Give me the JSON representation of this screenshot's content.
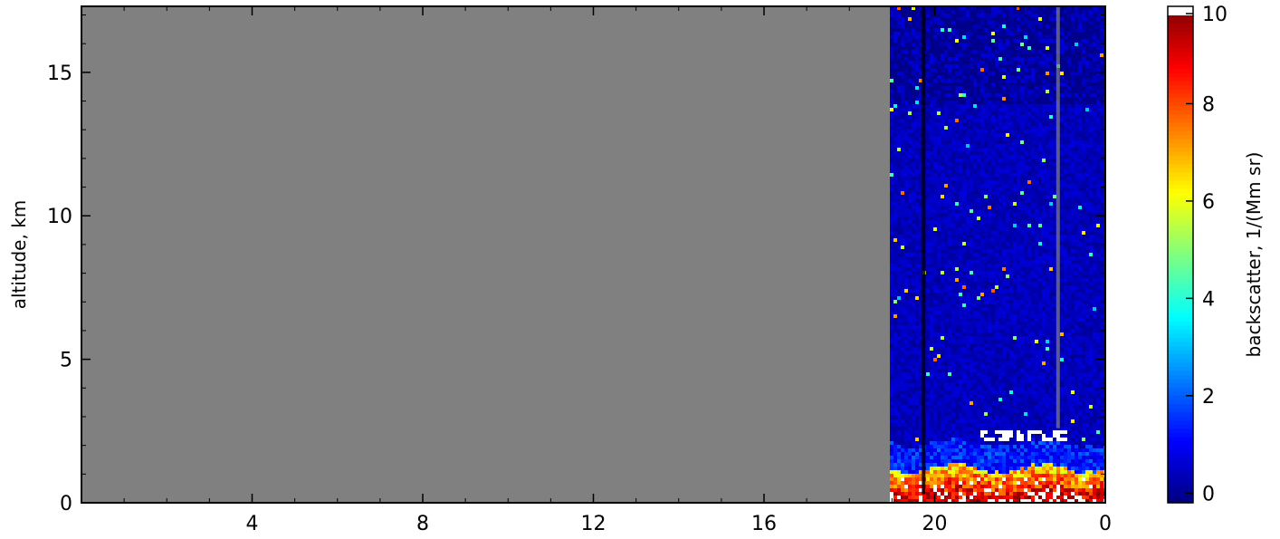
{
  "chart_data": {
    "type": "heatmap",
    "title": "",
    "xlabel": "",
    "ylabel": "altitude, km",
    "xlim": [
      -24,
      0
    ],
    "ylim": [
      0,
      17.3
    ],
    "x_ticks": [
      {
        "value": -20,
        "label": "4"
      },
      {
        "value": -16,
        "label": "8"
      },
      {
        "value": -12,
        "label": "12"
      },
      {
        "value": -8,
        "label": "16"
      },
      {
        "value": -4,
        "label": "20"
      },
      {
        "value": 0,
        "label": "0"
      }
    ],
    "y_ticks": [
      {
        "value": 0,
        "label": "0"
      },
      {
        "value": 5,
        "label": "5"
      },
      {
        "value": 10,
        "label": "10"
      },
      {
        "value": 15,
        "label": "15"
      }
    ],
    "no_data_range": [
      -24,
      -5.05
    ],
    "no_data_color": "#808080",
    "low_cloud_base_km": 2.4,
    "boundary_layer_top_km": 1.2,
    "colorbar": {
      "label": "backscatter, 1/(Mm sr)",
      "range": [
        -0.2,
        10
      ],
      "over_color": "#ffffff",
      "ticks": [
        {
          "value": 0,
          "label": "0"
        },
        {
          "value": 2,
          "label": "2"
        },
        {
          "value": 4,
          "label": "4"
        },
        {
          "value": 6,
          "label": "6"
        },
        {
          "value": 8,
          "label": "8"
        },
        {
          "value": 10,
          "label": "10"
        }
      ],
      "colormap": "jet",
      "colors": [
        "#00007f",
        "#0000ff",
        "#007fff",
        "#00ffff",
        "#7fff7f",
        "#ffff00",
        "#ff7f00",
        "#ff0000",
        "#7f0000"
      ]
    }
  }
}
